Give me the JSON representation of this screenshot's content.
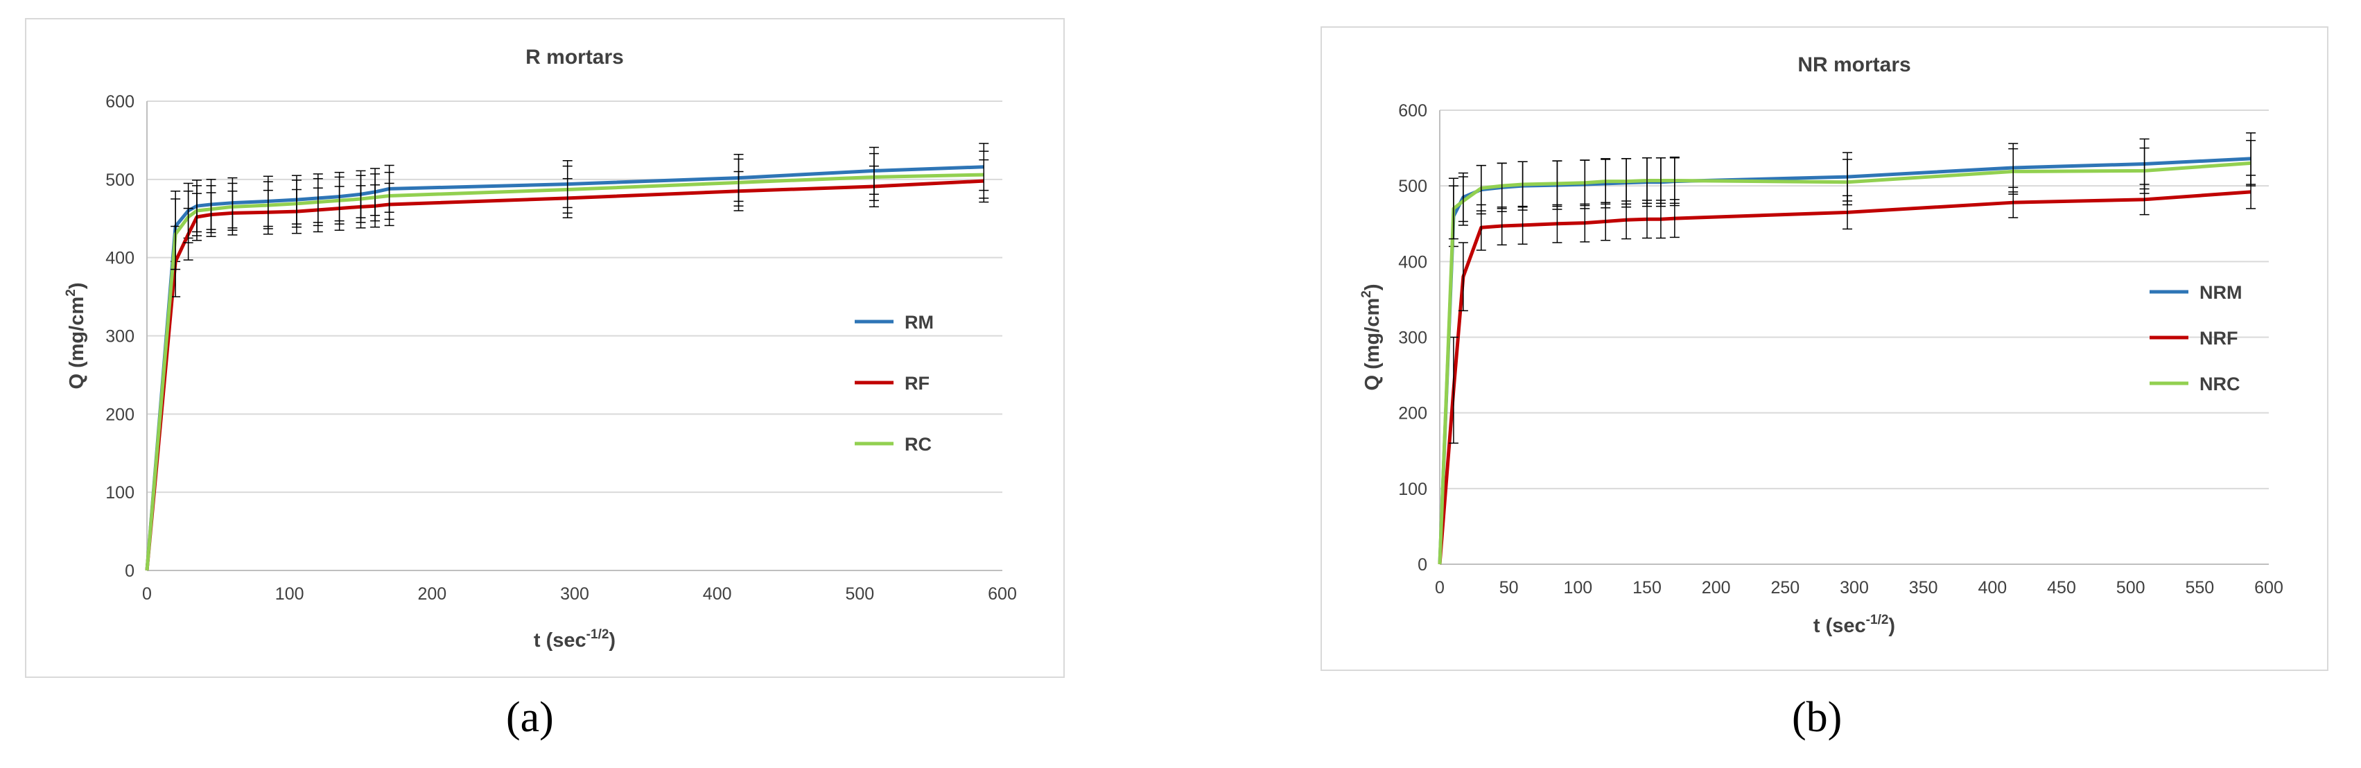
{
  "figure": {
    "captions": [
      "(a)",
      "(b)"
    ]
  },
  "chart_data": [
    {
      "type": "line",
      "title": "R mortars",
      "xlabel": "t (sec",
      "xlabel_sup": "-1/2",
      "xlabel_end": ")",
      "ylabel": "Q (mg/cm",
      "ylabel_sup": "2",
      "ylabel_end": ")",
      "xlim": [
        0,
        600
      ],
      "ylim": [
        0,
        600
      ],
      "xticks": [
        0,
        100,
        200,
        300,
        400,
        500,
        600
      ],
      "yticks": [
        0,
        100,
        200,
        300,
        400,
        500,
        600
      ],
      "grid": "horizontal",
      "legend_position": "right",
      "error_bars": true,
      "x": [
        0,
        20,
        29,
        35,
        45,
        60,
        85,
        105,
        120,
        135,
        150,
        160,
        170,
        295,
        415,
        510,
        587
      ],
      "series": [
        {
          "name": "RM",
          "color": "#2e75b6",
          "values": [
            0,
            440,
            460,
            466,
            468,
            470,
            472,
            474,
            476,
            478,
            481,
            484,
            488,
            494,
            502,
            511,
            516
          ],
          "errors": [
            0,
            45,
            35,
            33,
            32,
            32,
            32,
            31,
            31,
            31,
            30,
            30,
            30,
            30,
            30,
            30,
            30
          ]
        },
        {
          "name": "RF",
          "color": "#c00000",
          "values": [
            0,
            395,
            430,
            452,
            455,
            457,
            458,
            459,
            461,
            463,
            465,
            466,
            468,
            476,
            485,
            491,
            498
          ],
          "errors": [
            0,
            45,
            33,
            30,
            28,
            28,
            28,
            28,
            28,
            28,
            27,
            27,
            27,
            25,
            25,
            26,
            27
          ]
        },
        {
          "name": "RC",
          "color": "#92d050",
          "values": [
            0,
            430,
            452,
            460,
            462,
            465,
            467,
            469,
            471,
            473,
            475,
            477,
            479,
            487,
            496,
            503,
            506
          ],
          "errors": [
            0,
            45,
            33,
            32,
            30,
            30,
            30,
            30,
            30,
            30,
            30,
            30,
            30,
            30,
            30,
            30,
            30
          ]
        }
      ]
    },
    {
      "type": "line",
      "title": "NR mortars",
      "xlabel": "t (sec",
      "xlabel_sup": "-1/2",
      "xlabel_end": ")",
      "ylabel": "Q (mg/cm",
      "ylabel_sup": "2",
      "ylabel_end": ")",
      "xlim": [
        0,
        600
      ],
      "ylim": [
        0,
        600
      ],
      "xticks": [
        0,
        50,
        100,
        150,
        200,
        250,
        300,
        350,
        400,
        450,
        500,
        550,
        600
      ],
      "yticks": [
        0,
        100,
        200,
        300,
        400,
        500,
        600
      ],
      "grid": "horizontal",
      "legend_position": "right",
      "error_bars": true,
      "x": [
        0,
        10,
        17,
        30,
        45,
        60,
        85,
        105,
        120,
        135,
        150,
        160,
        170,
        295,
        415,
        510,
        587
      ],
      "series": [
        {
          "name": "NRM",
          "color": "#2e75b6",
          "values": [
            0,
            460,
            485,
            495,
            498,
            500,
            501,
            502,
            503,
            504,
            505,
            505,
            506,
            512,
            524,
            529,
            536
          ],
          "errors": [
            0,
            40,
            32,
            32,
            32,
            32,
            32,
            32,
            32,
            32,
            32,
            32,
            32,
            32,
            32,
            33,
            34
          ]
        },
        {
          "name": "NRF",
          "color": "#c00000",
          "values": [
            0,
            230,
            380,
            445,
            447,
            448,
            450,
            451,
            453,
            455,
            456,
            456,
            457,
            465,
            478,
            482,
            492
          ],
          "errors": [
            0,
            70,
            45,
            30,
            25,
            25,
            25,
            25,
            25,
            25,
            25,
            25,
            25,
            22,
            20,
            20,
            22
          ]
        },
        {
          "name": "NRC",
          "color": "#92d050",
          "values": [
            0,
            470,
            480,
            497,
            500,
            502,
            503,
            504,
            506,
            506,
            507,
            507,
            507,
            505,
            519,
            520,
            530
          ],
          "errors": [
            0,
            40,
            32,
            30,
            30,
            30,
            30,
            30,
            30,
            30,
            30,
            30,
            30,
            30,
            30,
            30,
            30
          ]
        }
      ]
    }
  ]
}
